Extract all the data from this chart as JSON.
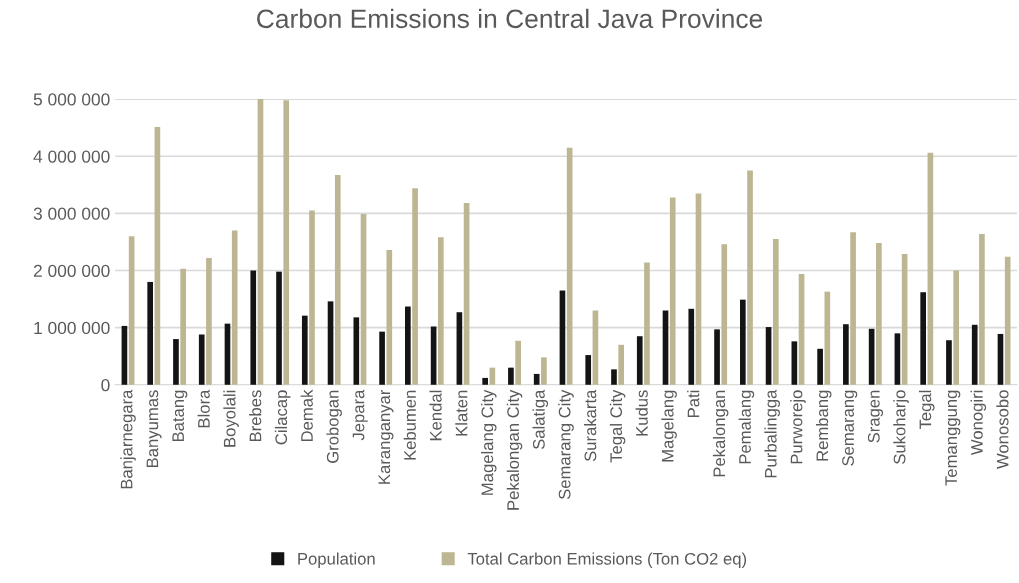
{
  "chart_data": {
    "type": "bar",
    "title": "Carbon Emissions in Central Java Province",
    "categories": [
      "Banjarnegara",
      "Banyumas",
      "Batang",
      "Blora",
      "Boyolali",
      "Brebes",
      "Cilacap",
      "Demak",
      "Grobogan",
      "Jepara",
      "Karanganyar",
      "Kebumen",
      "Kendal",
      "Klaten",
      "Magelang City",
      "Pekalongan City",
      "Salatiga",
      "Semarang City",
      "Surakarta",
      "Tegal City",
      "Kudus",
      "Magelang",
      "Pati",
      "Pekalongan",
      "Pemalang",
      "Purbalingga",
      "Purworejo",
      "Rembang",
      "Semarang",
      "Sragen",
      "Sukoharjo",
      "Tegal",
      "Temanggung",
      "Wonogiri",
      "Wonosobo"
    ],
    "series": [
      {
        "name": "Population",
        "color": "#141414",
        "values": [
          1030000,
          1800000,
          800000,
          880000,
          1070000,
          2000000,
          1980000,
          1210000,
          1460000,
          1180000,
          930000,
          1370000,
          1020000,
          1270000,
          120000,
          300000,
          190000,
          1650000,
          520000,
          270000,
          850000,
          1300000,
          1330000,
          970000,
          1490000,
          1010000,
          760000,
          630000,
          1060000,
          980000,
          900000,
          1620000,
          780000,
          1050000,
          890000
        ]
      },
      {
        "name": "Total Carbon Emissions (Ton CO2 eq)",
        "color": "#bdb693",
        "values": [
          2600000,
          4510000,
          2030000,
          2220000,
          2700000,
          5000000,
          4980000,
          3050000,
          3670000,
          2990000,
          2360000,
          3440000,
          2580000,
          3180000,
          300000,
          770000,
          480000,
          4150000,
          1300000,
          700000,
          2140000,
          3280000,
          3350000,
          2460000,
          3750000,
          2550000,
          1940000,
          1630000,
          2670000,
          2480000,
          2290000,
          4060000,
          2000000,
          2640000,
          2240000
        ]
      }
    ],
    "ylim": [
      0,
      5000000
    ],
    "yticks": [
      0,
      {
        "value": 1000000,
        "label": "1 000 000"
      },
      {
        "value": 2000000,
        "label": "2 000 000"
      },
      {
        "value": 3000000,
        "label": "3 000 000"
      },
      {
        "value": 4000000,
        "label": "4 000 000"
      },
      {
        "value": 5000000,
        "label": "5 000 000"
      }
    ],
    "grid": "y",
    "legend": "bottom"
  }
}
